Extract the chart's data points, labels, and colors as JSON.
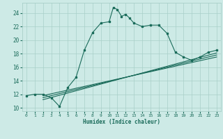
{
  "xlabel": "Humidex (Indice chaleur)",
  "bg_color": "#cdeae6",
  "grid_color": "#a8cfc9",
  "line_color": "#1a6b5a",
  "xlim": [
    -0.5,
    23.5
  ],
  "ylim": [
    9.5,
    25.5
  ],
  "xticks": [
    0,
    1,
    2,
    3,
    4,
    5,
    6,
    7,
    8,
    9,
    10,
    11,
    12,
    13,
    14,
    15,
    16,
    17,
    18,
    19,
    20,
    21,
    22,
    23
  ],
  "yticks": [
    10,
    12,
    14,
    16,
    18,
    20,
    22,
    24
  ],
  "main_x": [
    0,
    1,
    2,
    3,
    4,
    5,
    6,
    7,
    8,
    9,
    10,
    10.5,
    11,
    11.5,
    12,
    12.5,
    13,
    14,
    15,
    16,
    17,
    18,
    19,
    20,
    21,
    22,
    23
  ],
  "main_y": [
    11.8,
    12.0,
    12.0,
    11.5,
    10.2,
    13.0,
    14.5,
    18.5,
    21.1,
    22.5,
    22.7,
    24.8,
    24.5,
    23.5,
    23.8,
    23.2,
    22.5,
    22.0,
    22.2,
    22.2,
    21.0,
    18.2,
    17.5,
    17.0,
    17.5,
    18.2,
    18.5
  ],
  "line1_x": [
    2,
    23
  ],
  "line1_y": [
    11.8,
    17.5
  ],
  "line2_x": [
    2,
    23
  ],
  "line2_y": [
    11.5,
    17.8
  ],
  "line3_x": [
    2,
    23
  ],
  "line3_y": [
    11.2,
    18.1
  ]
}
